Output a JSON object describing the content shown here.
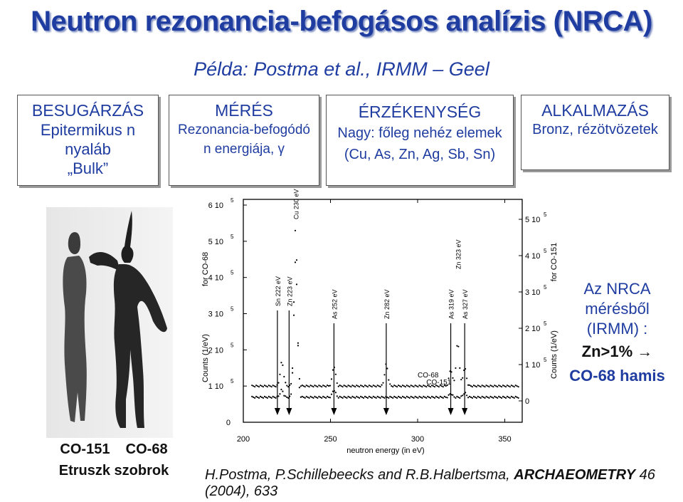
{
  "title": "Neutron rezonancia-befogásos analízis (NRCA)",
  "subtitle": "Példa: Postma et al., IRMM – Geel",
  "boxes": {
    "besugarzas": {
      "head": "BESUGÁRZÁS",
      "l1": "Epitermikus n",
      "l2": "nyaláb",
      "l3": "„Bulk”"
    },
    "meres": {
      "head": "MÉRÉS",
      "l1": "Rezonancia-befogódó",
      "l2": "n energiája, γ"
    },
    "erzekenyseg": {
      "head": "ÉRZÉKENYSÉG",
      "l1": "Nagy: főleg nehéz elemek",
      "l2": "(Cu, As, Zn, Ag, Sb, Sn)"
    },
    "alkalmazas": {
      "head": "ALKALMAZÁS",
      "l1": "Bronz, rézötvözetek"
    }
  },
  "statue_caption": {
    "labels": "CO-151    CO-68",
    "title": "Etruszk szobrok"
  },
  "note": {
    "l1": "Az  NRCA",
    "l2": "mérésből",
    "l3": "(IRMM) :",
    "zn": "Zn>1% →",
    "hamis": "CO-68 hamis"
  },
  "reference": {
    "authors": "H.Postma, P.Schillebeecks and R.B.Halbertsma, ",
    "journal": "ARCHAEOMETRY",
    "rest": " 46 (2004), 633"
  },
  "chart_data": {
    "type": "scatter",
    "xlabel": "neutron energy (in eV)",
    "xlim": [
      200,
      360
    ],
    "x_ticks": [
      200,
      250,
      300,
      350
    ],
    "left_axis": {
      "label": "Counts (1/eV)",
      "sublabel": "for CO-68",
      "ticks": [
        {
          "value": 0,
          "label": "0"
        },
        {
          "value": 100000,
          "label": "1 10",
          "exp": "5"
        },
        {
          "value": 200000,
          "label": "2 10",
          "exp": "5"
        },
        {
          "value": 300000,
          "label": "3 10",
          "exp": "5"
        },
        {
          "value": 400000,
          "label": "4 10",
          "exp": "5"
        },
        {
          "value": 500000,
          "label": "5 10",
          "exp": "5"
        },
        {
          "value": 600000,
          "label": "6 10",
          "exp": "5"
        }
      ]
    },
    "right_axis": {
      "label": "Counts (1/eV)",
      "sublabel": "for CO-151",
      "ticks": [
        {
          "value": 0,
          "label": "0"
        },
        {
          "value": 100000,
          "label": "1 10",
          "exp": "5"
        },
        {
          "value": 200000,
          "label": "2 10",
          "exp": "5"
        },
        {
          "value": 300000,
          "label": "3 10",
          "exp": "5"
        },
        {
          "value": 400000,
          "label": "4 10",
          "exp": "5"
        },
        {
          "value": 500000,
          "label": "5 10",
          "exp": "5"
        }
      ]
    },
    "series": [
      {
        "name": "CO-151",
        "baseline": 10000,
        "peaks": [
          {
            "x": 222,
            "h": 20000
          },
          {
            "x": 230,
            "h": 470000
          },
          {
            "x": 252,
            "h": 20000
          },
          {
            "x": 319,
            "h": 10000
          },
          {
            "x": 327,
            "h": 12000
          }
        ]
      },
      {
        "name": "CO-68",
        "baseline": 100000,
        "peaks": [
          {
            "x": 222,
            "h": 60000
          },
          {
            "x": 223,
            "h": 10000
          },
          {
            "x": 230,
            "h": 350000
          },
          {
            "x": 252,
            "h": 55000
          },
          {
            "x": 282,
            "h": 60000
          },
          {
            "x": 319,
            "h": 45000
          },
          {
            "x": 323,
            "h": 120000
          },
          {
            "x": 327,
            "h": 50000
          }
        ]
      }
    ],
    "annotations": [
      {
        "label": "Sn 222 eV",
        "x": 222
      },
      {
        "label": "Zn 223 eV",
        "x": 223
      },
      {
        "label": "Cu 230 eV",
        "x": 230
      },
      {
        "label": "As 252 eV",
        "x": 252
      },
      {
        "label": "Zn 282 eV",
        "x": 282
      },
      {
        "label": "As 319 eV",
        "x": 319
      },
      {
        "label": "Zn 323 eV",
        "x": 323
      },
      {
        "label": "As 327 eV",
        "x": 327
      }
    ]
  }
}
